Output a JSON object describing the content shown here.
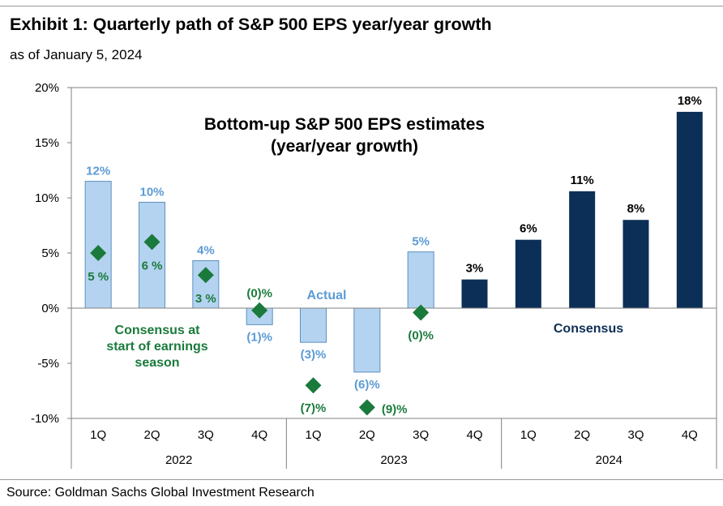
{
  "title": "Exhibit 1: Quarterly path of S&P 500 EPS year/year growth",
  "subtitle": "as of January 5, 2024",
  "source": "Source: Goldman Sachs Global Investment Research",
  "colors": {
    "actual": "#b4d3f0",
    "actual_border": "#5c8fbf",
    "actual_label": "#5b9bd5",
    "consensus": "#0c2f57",
    "diamond": "#1a7a3c",
    "axis": "#808080"
  },
  "chart_data": {
    "type": "bar",
    "title": "Bottom-up S&P 500 EPS estimates\n(year/year growth)",
    "ylim": [
      -10,
      20
    ],
    "yticks": [
      -10,
      -5,
      0,
      5,
      10,
      15,
      20
    ],
    "ytick_labels": [
      "-10%",
      "-5%",
      "0%",
      "5%",
      "10%",
      "15%",
      "20%"
    ],
    "categories": [
      "1Q",
      "2Q",
      "3Q",
      "4Q",
      "1Q",
      "2Q",
      "3Q",
      "4Q",
      "1Q",
      "2Q",
      "3Q",
      "4Q"
    ],
    "groups": [
      {
        "label": "2022",
        "span": [
          0,
          3
        ]
      },
      {
        "label": "2023",
        "span": [
          4,
          7
        ]
      },
      {
        "label": "2024",
        "span": [
          8,
          11
        ]
      }
    ],
    "series": [
      {
        "name": "Actual",
        "values": [
          11.5,
          9.6,
          4.3,
          -1.5,
          -3.1,
          -5.8,
          5.1,
          null,
          null,
          null,
          null,
          null
        ],
        "labels": [
          "12%",
          "10%",
          "4%",
          "(1)%",
          "(3)%",
          "(6)%",
          "5%",
          null,
          null,
          null,
          null,
          null
        ]
      },
      {
        "name": "Consensus",
        "values": [
          null,
          null,
          null,
          null,
          null,
          null,
          null,
          2.6,
          6.2,
          10.6,
          8.0,
          17.8
        ],
        "labels": [
          null,
          null,
          null,
          null,
          null,
          null,
          null,
          "3%",
          "6%",
          "11%",
          "8%",
          "18%"
        ]
      },
      {
        "name": "Consensus at start of earnings season",
        "marker": "diamond",
        "values": [
          5.0,
          6.0,
          3.0,
          -0.2,
          -7.0,
          -9.0,
          -0.4,
          null,
          null,
          null,
          null,
          null
        ],
        "labels": [
          "5 %",
          "6 %",
          "3 %",
          "(0)%",
          "(7)%",
          "(9)%",
          "(0)%",
          null,
          null,
          null,
          null,
          null
        ]
      }
    ],
    "annotations": {
      "actual": "Actual",
      "consensus": "Consensus",
      "consensus_start": "Consensus at\nstart of earnings\nseason"
    }
  }
}
